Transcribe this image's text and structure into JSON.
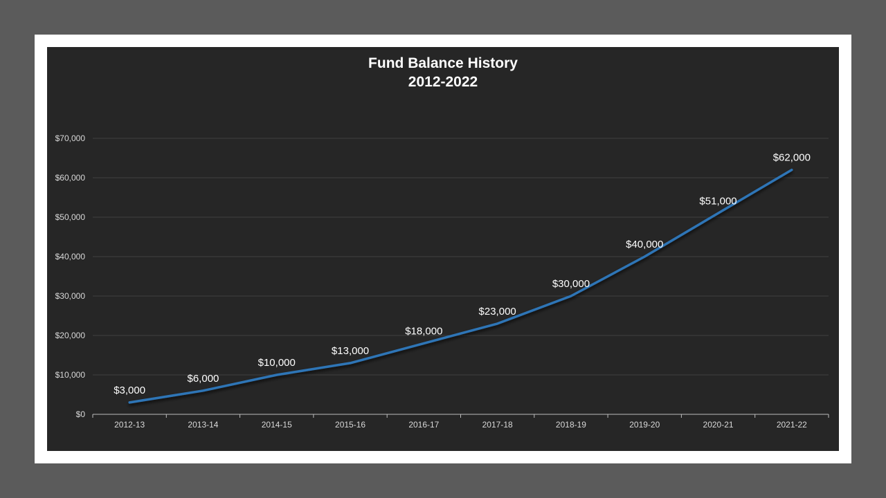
{
  "colors": {
    "page_background": "#5b5b5b",
    "frame": "#ffffff",
    "chart_background": "#262626",
    "line": "#2e75b6",
    "text": "#ffffff",
    "axis_text": "#d9d9d9",
    "gridline": "#404040"
  },
  "chart_data": {
    "type": "line",
    "title": "Fund Balance History",
    "subtitle": "2012-2022",
    "categories": [
      "2012-13",
      "2013-14",
      "2014-15",
      "2015-16",
      "2016-17",
      "2017-18",
      "2018-19",
      "2019-20",
      "2020-21",
      "2021-22"
    ],
    "values": [
      3000,
      6000,
      10000,
      13000,
      18000,
      23000,
      30000,
      40000,
      51000,
      62000
    ],
    "data_labels": [
      "$3,000",
      "$6,000",
      "$10,000",
      "$13,000",
      "$18,000",
      "$23,000",
      "$30,000",
      "$40,000",
      "$51,000",
      "$62,000"
    ],
    "y_ticks": [
      0,
      10000,
      20000,
      30000,
      40000,
      50000,
      60000,
      70000
    ],
    "y_tick_labels": [
      "$0",
      "$10,000",
      "$20,000",
      "$30,000",
      "$40,000",
      "$50,000",
      "$60,000",
      "$70,000"
    ],
    "ylim": [
      0,
      70000
    ],
    "xlabel": "",
    "ylabel": "",
    "grid": true,
    "legend": "none"
  }
}
